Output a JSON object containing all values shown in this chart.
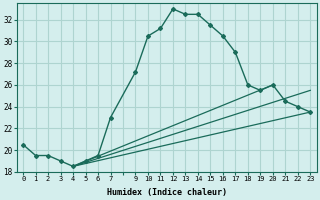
{
  "xlabel": "Humidex (Indice chaleur)",
  "background_color": "#d4eeed",
  "grid_color": "#aed4d0",
  "line_color": "#1a6b5a",
  "hours": [
    0,
    1,
    2,
    3,
    4,
    5,
    6,
    7,
    9,
    10,
    11,
    12,
    13,
    14,
    15,
    16,
    17,
    18,
    19,
    20,
    21,
    22,
    23
  ],
  "humidex": [
    20.5,
    19.5,
    19.5,
    19.0,
    18.5,
    19.0,
    19.5,
    23.0,
    27.2,
    30.5,
    31.2,
    33.0,
    32.5,
    32.5,
    31.5,
    30.5,
    29.0,
    26.0,
    25.5,
    26.0,
    24.5,
    24.0,
    23.5
  ],
  "ref_lines": [
    {
      "x0": 4,
      "y0": 18.5,
      "x1": 23,
      "y1": 23.5
    },
    {
      "x0": 4,
      "y0": 18.5,
      "x1": 23,
      "y1": 25.5
    },
    {
      "x0": 4,
      "y0": 18.5,
      "x1": 20,
      "y1": 26.0
    }
  ],
  "ylim": [
    18,
    33.5
  ],
  "yticks": [
    18,
    20,
    22,
    24,
    26,
    28,
    30,
    32
  ],
  "xlim": [
    -0.5,
    23.5
  ],
  "xtick_labels": [
    "0",
    "1",
    "2",
    "3",
    "4",
    "5",
    "6",
    "7",
    "",
    "9",
    "10",
    "11",
    "12",
    "13",
    "14",
    "15",
    "16",
    "17",
    "18",
    "19",
    "20",
    "21",
    "22",
    "23"
  ]
}
